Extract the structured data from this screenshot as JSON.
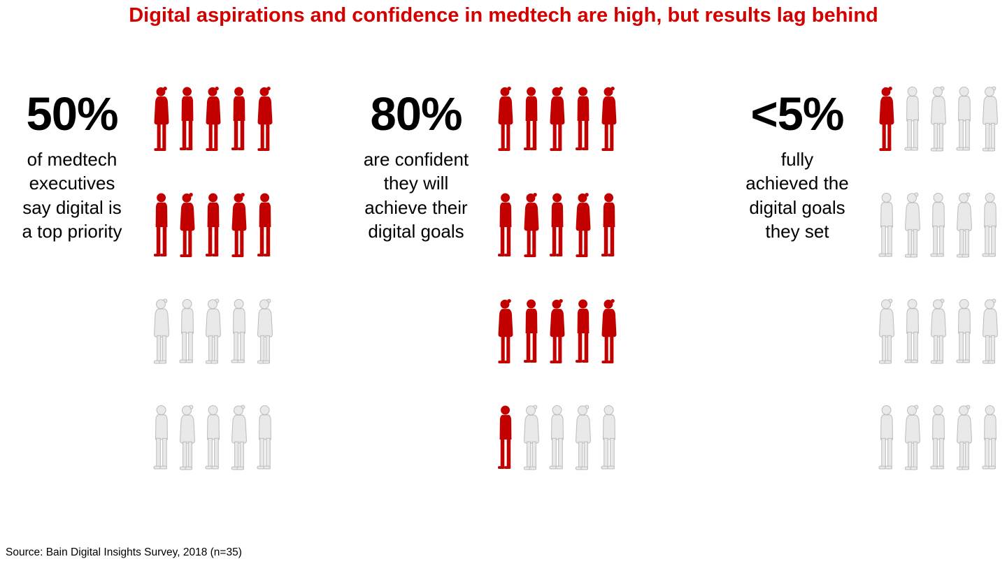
{
  "title": "Digital aspirations and confidence in medtech are high, but results lag behind",
  "source": "Source: Bain Digital Insights Survey, 2018 (n=35)",
  "chart_data": {
    "type": "pictogram",
    "title": "Digital aspirations and confidence in medtech are high, but results lag behind",
    "unit": "medtech executives (each figure = 5%)",
    "icons_per_panel": 20,
    "icons_per_row": 5,
    "panels": [
      {
        "value": "50%",
        "label": "of medtech executives say digital is a top priority",
        "label_lines": [
          "of medtech",
          "executives",
          "say digital is",
          "a top priority"
        ],
        "filled": 10,
        "total": 20
      },
      {
        "value": "80%",
        "label": "are confident they will achieve their digital goals",
        "label_lines": [
          "are confident",
          "they will",
          "achieve their",
          "digital goals"
        ],
        "filled": 16,
        "total": 20
      },
      {
        "value": "<5%",
        "label": "fully achieved the digital goals they set",
        "label_lines": [
          "fully",
          "achieved the",
          "digital goals",
          "they set"
        ],
        "filled": 1,
        "total": 20
      }
    ],
    "colors": {
      "title": "#d40000",
      "filled": "#c20000",
      "empty": "#e9e9e9",
      "empty_stroke": "#bcbcbc"
    },
    "source": "Source: Bain Digital Insights Survey, 2018 (n=35)"
  }
}
